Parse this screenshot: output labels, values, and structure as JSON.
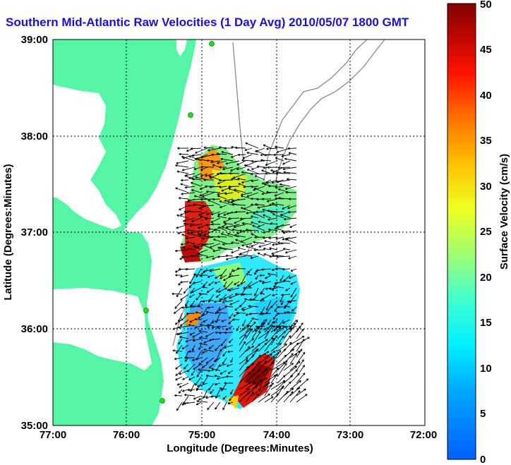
{
  "title": "Southern Mid-Atlantic Raw Velocities (1 Day Avg) 2010/05/07 1800 GMT",
  "x_axis": {
    "label": "Longitude (Degrees:Minutes)",
    "ticks": [
      "77:00",
      "76:00",
      "75:00",
      "74:00",
      "73:00",
      "72:00"
    ]
  },
  "y_axis": {
    "label": "Latitude (Degrees:Minutes)",
    "ticks": [
      "39:00",
      "38:00",
      "37:00",
      "36:00",
      "35:00"
    ]
  },
  "colorbar": {
    "label": "Surface Velocity (cm/s)",
    "ticks": [
      "50",
      "45",
      "40",
      "35",
      "30",
      "25",
      "20",
      "15",
      "10",
      "5",
      "0"
    ],
    "range": [
      0,
      50
    ],
    "units": "cm/s"
  },
  "colors": {
    "title": "#1a10d8",
    "land": "#55f5a8",
    "water": "#ffffff",
    "bathymetry": "#8a8a8a",
    "grid": "#000000",
    "station": "#22dd22"
  },
  "map_extent": {
    "lon_range": [
      -77.0,
      -72.0
    ],
    "lat_range": [
      35.0,
      39.0
    ],
    "grid": "dotted"
  }
}
